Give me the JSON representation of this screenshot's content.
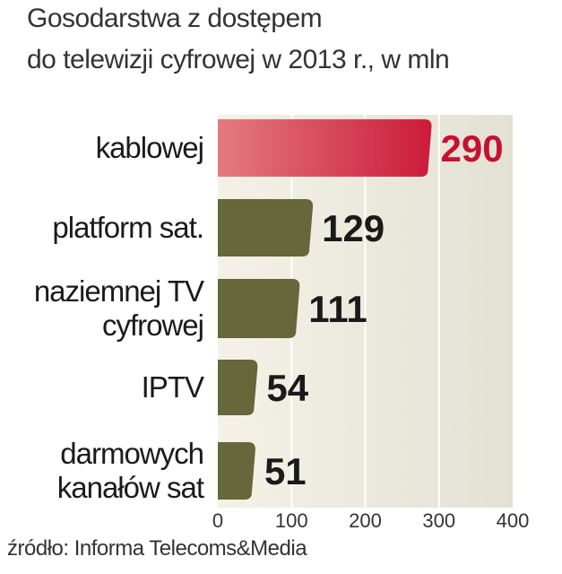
{
  "chart_data": {
    "type": "bar",
    "orientation": "horizontal",
    "title_lines": [
      "Gosodarstwa z dostępem",
      "do telewizji cyfrowej w 2013 r., w mln"
    ],
    "categories": [
      "kablowej",
      "platform sat.",
      "naziemnej TV\ncyfrowej",
      "IPTV",
      "darmowych\nkanałów sat"
    ],
    "values": [
      290,
      129,
      111,
      54,
      51
    ],
    "colors": [
      "#cc1b3a",
      "#66673a",
      "#66673a",
      "#66673a",
      "#66673a"
    ],
    "label_colors": [
      "#c8102e",
      "#1a1a1a",
      "#1a1a1a",
      "#1a1a1a",
      "#1a1a1a"
    ],
    "xlim": [
      0,
      400
    ],
    "xticks": [
      0,
      100,
      200,
      300,
      400
    ],
    "grid": true,
    "source": "źródło: Informa Telecoms&Media"
  }
}
